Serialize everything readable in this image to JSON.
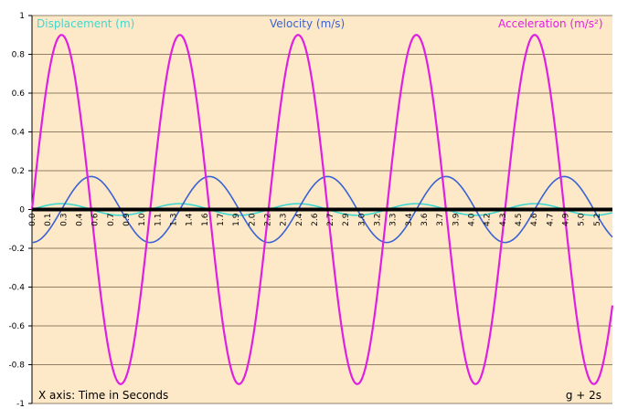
{
  "chart_data": {
    "type": "line",
    "title": "",
    "xlabel": "X axis: Time in Seconds",
    "ylabel": "",
    "annotation": "g + 2s",
    "ylim": [
      -1,
      1
    ],
    "y_ticks": [
      "1",
      "0.8",
      "0.6",
      "0.4",
      "0.2",
      "0",
      "-0.2",
      "-0.4",
      "-0.6",
      "-0.8",
      "-1"
    ],
    "xlim": [
      0,
      5.3
    ],
    "x_ticks": [
      "0.0",
      "0.1",
      "0.3",
      "0.4",
      "0.6",
      "0.7",
      "0.9",
      "1.0",
      "1.1",
      "1.3",
      "1.4",
      "1.6",
      "1.7",
      "1.9",
      "2.0",
      "2.2",
      "2.3",
      "2.4",
      "2.6",
      "2.7",
      "2.9",
      "3.0",
      "3.2",
      "3.3",
      "3.4",
      "3.6",
      "3.7",
      "3.9",
      "4.0",
      "4.2",
      "4.3",
      "4.5",
      "4.6",
      "4.7",
      "4.9",
      "5.0",
      "5.2"
    ],
    "grid": "horizontal",
    "background": "#fde9c8",
    "series": [
      {
        "name": "Displacement (m)",
        "color": "#3fd8d0",
        "amplitude": 0.03,
        "period": 1.08,
        "phase_peak": 0.27,
        "values_at": {
          "0.0": 0.0,
          "0.27": 0.03,
          "0.54": 0.0,
          "0.81": -0.03,
          "1.08": 0.0
        }
      },
      {
        "name": "Velocity (m/s)",
        "color": "#3a62d4",
        "amplitude": 0.17,
        "period": 1.08,
        "phase_peak": 0.54,
        "values_at": {
          "0.0": -0.17,
          "0.27": 0.0,
          "0.54": 0.17,
          "0.81": 0.0,
          "1.08": -0.17
        }
      },
      {
        "name": "Acceleration (m/s²)",
        "color": "#e020e0",
        "amplitude": 0.9,
        "period": 1.08,
        "phase_peak": 0.27,
        "values_at": {
          "0.0": 0.0,
          "0.27": 0.9,
          "0.54": 0.0,
          "0.81": -0.9,
          "1.08": 0.0
        }
      }
    ]
  }
}
